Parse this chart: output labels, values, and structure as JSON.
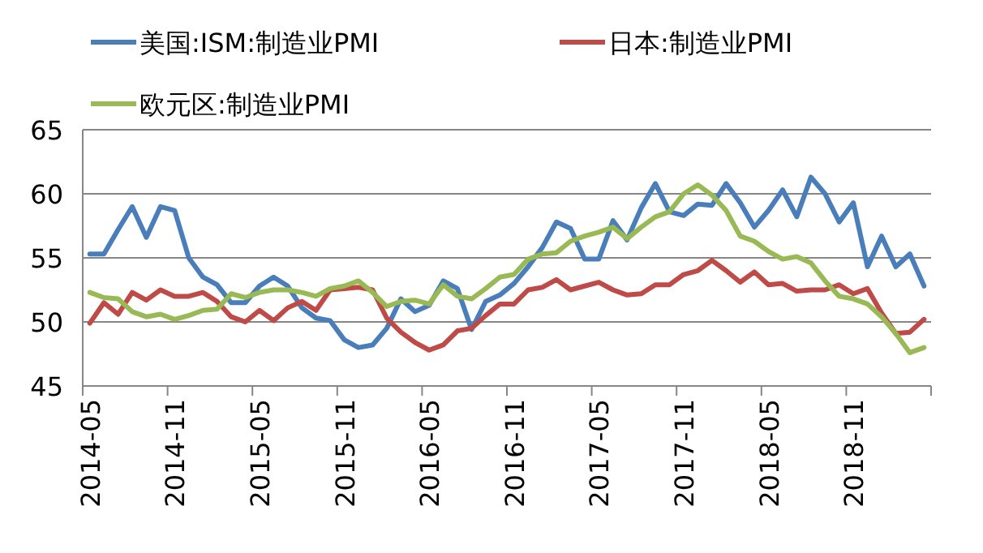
{
  "chart_data": {
    "type": "line",
    "categories": [
      "2014-05",
      null,
      null,
      null,
      null,
      null,
      "2014-11",
      null,
      null,
      null,
      null,
      null,
      "2015-05",
      null,
      null,
      null,
      null,
      null,
      "2015-11",
      null,
      null,
      null,
      null,
      null,
      "2016-05",
      null,
      null,
      null,
      null,
      null,
      "2016-11",
      null,
      null,
      null,
      null,
      null,
      "2017-05",
      null,
      null,
      null,
      null,
      null,
      "2017-11",
      null,
      null,
      null,
      null,
      null,
      "2018-05",
      null,
      null,
      null,
      null,
      null,
      "2018-11",
      null,
      null,
      null,
      null,
      null
    ],
    "series": [
      {
        "name": "美国:ISM:制造业PMI",
        "color": "#4a7ebb",
        "values": [
          55.3,
          55.3,
          57.2,
          59.0,
          56.6,
          59.0,
          58.7,
          55.0,
          53.5,
          52.9,
          51.5,
          51.5,
          52.8,
          53.5,
          52.8,
          51.1,
          50.3,
          50.1,
          48.6,
          48.0,
          48.2,
          49.5,
          51.8,
          50.8,
          51.3,
          53.2,
          52.6,
          49.4,
          51.6,
          52.1,
          53.0,
          54.3,
          55.8,
          57.8,
          57.3,
          54.9,
          54.9,
          57.9,
          56.4,
          58.9,
          60.8,
          58.6,
          58.3,
          59.2,
          59.1,
          60.8,
          59.3,
          57.4,
          58.7,
          60.3,
          58.2,
          61.3,
          60.0,
          57.8,
          59.3,
          54.3,
          56.7,
          54.3,
          55.3,
          52.8
        ]
      },
      {
        "name": "日本:制造业PMI",
        "color": "#be4b48",
        "values": [
          49.9,
          51.5,
          50.6,
          52.3,
          51.7,
          52.5,
          52.0,
          52.0,
          52.3,
          51.6,
          50.4,
          50.0,
          50.9,
          50.1,
          51.1,
          51.6,
          50.9,
          52.5,
          52.6,
          52.7,
          52.5,
          50.3,
          49.2,
          48.4,
          47.8,
          48.2,
          49.3,
          49.5,
          50.5,
          51.4,
          51.4,
          52.5,
          52.7,
          53.3,
          52.5,
          52.8,
          53.1,
          52.5,
          52.1,
          52.2,
          52.9,
          52.9,
          53.7,
          54.0,
          54.8,
          54.0,
          53.1,
          53.9,
          52.9,
          53.0,
          52.4,
          52.5,
          52.5,
          52.9,
          52.2,
          52.6,
          50.7,
          49.1,
          49.2,
          50.2
        ]
      },
      {
        "name": "欧元区:制造业PMI",
        "color": "#98b954",
        "values": [
          52.3,
          51.9,
          51.8,
          50.8,
          50.4,
          50.6,
          50.2,
          50.5,
          50.9,
          51.0,
          52.2,
          51.9,
          52.3,
          52.5,
          52.5,
          52.3,
          52.0,
          52.6,
          52.8,
          53.2,
          52.3,
          51.2,
          51.6,
          51.7,
          51.4,
          52.9,
          52.0,
          51.8,
          52.6,
          53.5,
          53.7,
          54.9,
          55.3,
          55.4,
          56.3,
          56.7,
          57.0,
          57.4,
          56.5,
          57.4,
          58.2,
          58.6,
          60.0,
          60.7,
          59.9,
          58.7,
          56.7,
          56.3,
          55.5,
          54.9,
          55.1,
          54.6,
          53.2,
          52.0,
          51.8,
          51.4,
          50.4,
          49.1,
          47.6,
          48.0
        ]
      }
    ],
    "ylim": [
      45,
      65
    ],
    "yticks": [
      45,
      50,
      55,
      60,
      65
    ],
    "grid": "y",
    "legend": "top",
    "marker": "none",
    "line_style": "solid"
  }
}
